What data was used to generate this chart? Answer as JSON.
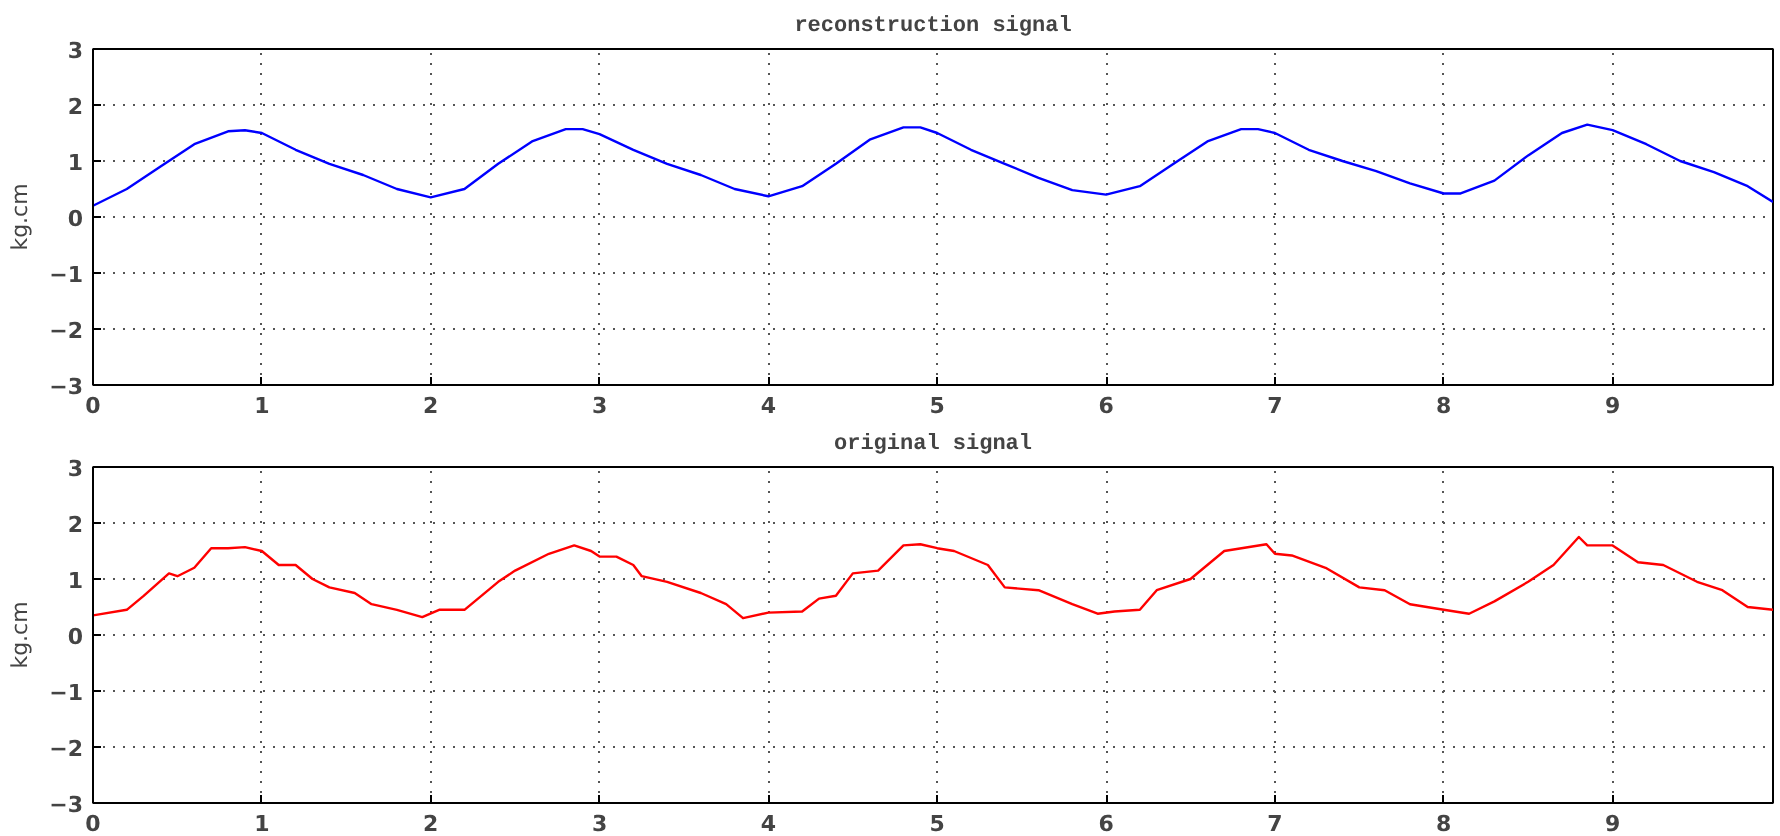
{
  "chart_data": [
    {
      "type": "line",
      "title": "reconstruction signal",
      "ylabel": "kg.cm",
      "xlim": [
        0,
        9.95
      ],
      "xticks": [
        0,
        1,
        2,
        3,
        4,
        5,
        6,
        7,
        8,
        9
      ],
      "ylim": [
        -3,
        3
      ],
      "yticks": [
        -3,
        -2,
        -1,
        0,
        1,
        2,
        3
      ],
      "grid": true,
      "line_style": "solid",
      "marker": "none",
      "series": [
        {
          "color": "#0000ff",
          "x": [
            0,
            0.2,
            0.4,
            0.6,
            0.8,
            0.9,
            1.0,
            1.2,
            1.4,
            1.6,
            1.8,
            2.0,
            2.2,
            2.4,
            2.6,
            2.8,
            2.9,
            3.0,
            3.2,
            3.4,
            3.6,
            3.8,
            4.0,
            4.2,
            4.4,
            4.6,
            4.8,
            4.9,
            5.0,
            5.2,
            5.4,
            5.6,
            5.8,
            6.0,
            6.2,
            6.4,
            6.6,
            6.8,
            6.9,
            7.0,
            7.2,
            7.4,
            7.6,
            7.8,
            8.0,
            8.1,
            8.3,
            8.5,
            8.7,
            8.85,
            9.0,
            9.2,
            9.4,
            9.6,
            9.8,
            9.95
          ],
          "values": [
            0.2,
            0.5,
            0.9,
            1.3,
            1.53,
            1.55,
            1.5,
            1.2,
            0.95,
            0.75,
            0.5,
            0.35,
            0.5,
            0.95,
            1.35,
            1.57,
            1.57,
            1.48,
            1.2,
            0.95,
            0.75,
            0.5,
            0.37,
            0.55,
            0.95,
            1.38,
            1.6,
            1.6,
            1.5,
            1.2,
            0.95,
            0.7,
            0.48,
            0.4,
            0.55,
            0.95,
            1.35,
            1.57,
            1.57,
            1.5,
            1.2,
            1.0,
            0.82,
            0.6,
            0.42,
            0.42,
            0.65,
            1.1,
            1.5,
            1.65,
            1.55,
            1.3,
            1.0,
            0.8,
            0.55,
            0.27
          ]
        }
      ]
    },
    {
      "type": "line",
      "title": "original signal",
      "ylabel": "kg.cm",
      "xlim": [
        0,
        9.95
      ],
      "xticks": [
        0,
        1,
        2,
        3,
        4,
        5,
        6,
        7,
        8,
        9
      ],
      "ylim": [
        -3,
        3
      ],
      "yticks": [
        -3,
        -2,
        -1,
        0,
        1,
        2,
        3
      ],
      "grid": true,
      "line_style": "solid",
      "marker": "none",
      "series": [
        {
          "color": "#ff0000",
          "x": [
            0,
            0.2,
            0.3,
            0.45,
            0.5,
            0.6,
            0.7,
            0.8,
            0.9,
            1.0,
            1.1,
            1.2,
            1.3,
            1.4,
            1.55,
            1.65,
            1.8,
            1.95,
            2.05,
            2.2,
            2.4,
            2.5,
            2.7,
            2.85,
            2.95,
            3.0,
            3.1,
            3.2,
            3.25,
            3.4,
            3.6,
            3.75,
            3.85,
            4.0,
            4.2,
            4.3,
            4.4,
            4.5,
            4.65,
            4.8,
            4.9,
            5.0,
            5.1,
            5.3,
            5.4,
            5.6,
            5.8,
            5.95,
            6.05,
            6.2,
            6.3,
            6.5,
            6.7,
            6.95,
            7.0,
            7.1,
            7.3,
            7.5,
            7.65,
            7.8,
            8.0,
            8.15,
            8.3,
            8.5,
            8.65,
            8.8,
            8.85,
            9.0,
            9.15,
            9.3,
            9.5,
            9.65,
            9.8,
            9.95
          ],
          "values": [
            0.35,
            0.45,
            0.7,
            1.1,
            1.05,
            1.2,
            1.55,
            1.55,
            1.57,
            1.5,
            1.25,
            1.25,
            1.0,
            0.85,
            0.75,
            0.55,
            0.45,
            0.32,
            0.45,
            0.45,
            0.95,
            1.15,
            1.45,
            1.6,
            1.5,
            1.4,
            1.4,
            1.25,
            1.05,
            0.95,
            0.75,
            0.55,
            0.3,
            0.4,
            0.42,
            0.65,
            0.7,
            1.1,
            1.15,
            1.6,
            1.62,
            1.55,
            1.5,
            1.25,
            0.85,
            0.8,
            0.55,
            0.38,
            0.42,
            0.45,
            0.8,
            1.0,
            1.5,
            1.62,
            1.45,
            1.42,
            1.2,
            0.85,
            0.8,
            0.55,
            0.45,
            0.38,
            0.6,
            0.95,
            1.25,
            1.75,
            1.6,
            1.6,
            1.3,
            1.25,
            0.95,
            0.8,
            0.5,
            0.45
          ]
        }
      ]
    }
  ]
}
